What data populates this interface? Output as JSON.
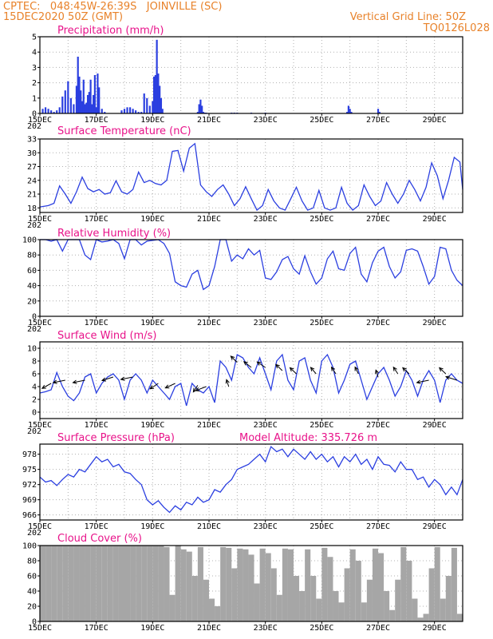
{
  "header": {
    "line1_left": "CPTEC:   048:45W-26:39S   JOINVILLE (SC)",
    "line2_left": "15DEC2020 50Z (GMT)",
    "line1_right": "Vertical Grid Line: 50Z",
    "line2_right": "TQ0126L028"
  },
  "colors": {
    "header": "#e8822a",
    "title": "#e8138a",
    "series": "#2b3fe0",
    "cloud": "#a6a6a6",
    "grid": "#b0b0b0"
  },
  "x_tick_labels": [
    "15DEC",
    "17DEC",
    "19DEC",
    "21DEC",
    "23DEC",
    "25DEC",
    "27DEC",
    "29DEC"
  ],
  "cut_label": "202",
  "chart_data": [
    {
      "type": "bar",
      "title": "Precipitation (mm/h)",
      "x_range": [
        0,
        15
      ],
      "ylim": [
        0,
        5
      ],
      "y_ticks": [
        0,
        1,
        2,
        3,
        4,
        5
      ],
      "x": [
        0.1,
        0.2,
        0.3,
        0.4,
        0.5,
        0.6,
        0.7,
        0.8,
        0.9,
        1.0,
        1.1,
        1.2,
        1.3,
        1.35,
        1.4,
        1.45,
        1.5,
        1.55,
        1.6,
        1.65,
        1.7,
        1.75,
        1.8,
        1.85,
        1.9,
        1.95,
        2.0,
        2.05,
        2.1,
        2.2,
        2.3,
        2.9,
        3.0,
        3.1,
        3.2,
        3.3,
        3.4,
        3.5,
        3.6,
        3.7,
        3.8,
        3.9,
        4.0,
        4.05,
        4.1,
        4.15,
        4.2,
        4.25,
        4.3,
        4.35,
        5.6,
        5.65,
        5.7,
        5.75,
        5.8,
        5.85,
        5.9,
        6.8,
        6.9,
        7.0,
        7.5,
        8.0,
        10.9,
        10.95,
        11.0,
        11.05,
        12.0,
        12.05
      ],
      "values": [
        0.3,
        0.4,
        0.3,
        0.2,
        0.1,
        0.2,
        0.4,
        1.1,
        1.5,
        2.1,
        1.0,
        0.6,
        1.8,
        3.7,
        2.4,
        1.5,
        0.8,
        2.2,
        0.6,
        0.7,
        1.2,
        1.4,
        2.2,
        0.6,
        1.2,
        2.5,
        0.4,
        2.6,
        1.7,
        0.3,
        0.1,
        0.2,
        0.3,
        0.4,
        0.4,
        0.3,
        0.2,
        0.1,
        0.1,
        1.3,
        1.0,
        0.5,
        0.8,
        2.4,
        2.5,
        4.8,
        2.6,
        1.8,
        1.0,
        0.3,
        0.1,
        0.6,
        0.9,
        0.5,
        0.1,
        0.05,
        0.05,
        0.05,
        0.05,
        0.05,
        0.05,
        0.05,
        0.1,
        0.5,
        0.3,
        0.1,
        0.3,
        0.1
      ]
    },
    {
      "type": "line",
      "title": "Surface Temperature (nC)",
      "x_range": [
        0,
        15
      ],
      "ylim": [
        17,
        33
      ],
      "y_ticks": [
        18,
        21,
        24,
        27,
        30,
        33
      ],
      "x": [
        0,
        0.3,
        0.5,
        0.7,
        0.9,
        1.1,
        1.3,
        1.5,
        1.7,
        1.9,
        2.1,
        2.3,
        2.5,
        2.7,
        2.9,
        3.1,
        3.3,
        3.5,
        3.7,
        3.9,
        4.1,
        4.3,
        4.5,
        4.7,
        4.9,
        5.1,
        5.3,
        5.5,
        5.7,
        5.9,
        6.1,
        6.3,
        6.5,
        6.7,
        6.9,
        7.1,
        7.3,
        7.5,
        7.7,
        7.9,
        8.1,
        8.3,
        8.5,
        8.7,
        8.9,
        9.1,
        9.3,
        9.5,
        9.7,
        9.9,
        10.1,
        10.3,
        10.5,
        10.7,
        10.9,
        11.1,
        11.3,
        11.5,
        11.7,
        11.9,
        12.1,
        12.3,
        12.5,
        12.7,
        12.9,
        13.1,
        13.3,
        13.5,
        13.7,
        13.9,
        14.1,
        14.3,
        14.5,
        14.7,
        14.9,
        15
      ],
      "values": [
        18.2,
        18.5,
        19,
        22.8,
        21,
        19,
        21.5,
        24.7,
        22.2,
        21.5,
        22,
        21,
        21.3,
        23.9,
        21.5,
        21,
        22,
        25.8,
        23.5,
        24,
        23.3,
        23,
        24,
        30.3,
        30.5,
        26,
        31,
        32,
        23,
        21.5,
        20.5,
        22,
        23,
        21,
        18.5,
        20,
        22.6,
        20,
        17.5,
        18.5,
        22,
        19.5,
        18,
        17.5,
        20,
        22.5,
        19.5,
        17.5,
        18,
        21.8,
        18,
        17.5,
        18,
        22.5,
        19,
        17.5,
        18.5,
        23,
        20.5,
        18.5,
        19.5,
        23.5,
        21,
        19,
        21,
        24,
        22,
        19.5,
        22.5,
        27.8,
        25,
        20,
        24,
        29,
        28,
        22
      ]
    },
    {
      "type": "line",
      "title": "Relative Humidity (%)",
      "x_range": [
        0,
        15
      ],
      "ylim": [
        0,
        100
      ],
      "y_ticks": [
        0,
        20,
        40,
        60,
        80,
        100
      ],
      "x": [
        0,
        0.2,
        0.4,
        0.6,
        0.8,
        1.0,
        1.2,
        1.4,
        1.6,
        1.8,
        2.0,
        2.2,
        2.4,
        2.6,
        2.8,
        3.0,
        3.2,
        3.4,
        3.6,
        3.8,
        4.0,
        4.2,
        4.4,
        4.6,
        4.8,
        5.0,
        5.2,
        5.4,
        5.6,
        5.8,
        6.0,
        6.2,
        6.4,
        6.6,
        6.8,
        7.0,
        7.2,
        7.4,
        7.6,
        7.8,
        8.0,
        8.2,
        8.4,
        8.6,
        8.8,
        9.0,
        9.2,
        9.4,
        9.6,
        9.8,
        10.0,
        10.2,
        10.4,
        10.6,
        10.8,
        11.0,
        11.2,
        11.4,
        11.6,
        11.8,
        12.0,
        12.2,
        12.4,
        12.6,
        12.8,
        13.0,
        13.2,
        13.4,
        13.6,
        13.8,
        14.0,
        14.2,
        14.4,
        14.6,
        14.8,
        15
      ],
      "values": [
        100,
        100,
        98,
        100,
        85,
        100,
        100,
        100,
        80,
        74,
        100,
        97,
        98,
        100,
        95,
        75,
        100,
        100,
        93,
        98,
        99,
        100,
        95,
        82,
        45,
        40,
        38,
        55,
        60,
        35,
        40,
        65,
        100,
        100,
        72,
        80,
        75,
        88,
        80,
        86,
        50,
        48,
        58,
        74,
        78,
        62,
        55,
        79,
        58,
        42,
        50,
        75,
        85,
        62,
        60,
        82,
        90,
        55,
        45,
        70,
        85,
        90,
        65,
        50,
        58,
        86,
        88,
        85,
        65,
        42,
        52,
        90,
        88,
        60,
        47,
        40
      ]
    },
    {
      "type": "line",
      "title": "Surface Wind (m/s)",
      "x_range": [
        0,
        15
      ],
      "ylim": [
        -1,
        11
      ],
      "y_ticks": [
        0,
        2,
        4,
        6,
        8,
        10
      ],
      "x": [
        0,
        0.2,
        0.4,
        0.6,
        0.8,
        1.0,
        1.2,
        1.4,
        1.6,
        1.8,
        2.0,
        2.2,
        2.4,
        2.6,
        2.8,
        3.0,
        3.2,
        3.4,
        3.6,
        3.8,
        4.0,
        4.2,
        4.4,
        4.6,
        4.8,
        5.0,
        5.2,
        5.4,
        5.6,
        5.8,
        6.0,
        6.2,
        6.4,
        6.6,
        6.8,
        7.0,
        7.2,
        7.4,
        7.6,
        7.8,
        8.0,
        8.2,
        8.4,
        8.6,
        8.8,
        9.0,
        9.2,
        9.4,
        9.6,
        9.8,
        10.0,
        10.2,
        10.4,
        10.6,
        10.8,
        11.0,
        11.2,
        11.4,
        11.6,
        11.8,
        12.0,
        12.2,
        12.4,
        12.6,
        12.8,
        13.0,
        13.2,
        13.4,
        13.6,
        13.8,
        14.0,
        14.2,
        14.4,
        14.6,
        14.8,
        15
      ],
      "values": [
        3,
        3.2,
        3.5,
        6.2,
        4,
        2.5,
        1.8,
        3,
        5.5,
        6,
        3,
        4.5,
        5.5,
        6,
        5,
        2,
        5,
        6,
        5,
        3,
        5,
        4,
        3,
        2,
        4,
        4.5,
        1,
        4.5,
        3.5,
        3,
        4,
        1.5,
        8,
        7,
        5,
        9,
        8.5,
        7,
        6,
        8.5,
        6,
        3.5,
        8,
        9,
        5,
        3.5,
        8,
        8.5,
        5,
        3,
        8,
        9,
        7,
        3,
        5,
        7.5,
        8,
        5,
        2,
        4,
        6,
        7,
        5,
        2.5,
        4,
        6.5,
        5,
        2.5,
        5,
        6.5,
        5,
        1.5,
        5,
        6,
        5,
        4.5
      ],
      "arrows": [
        {
          "x": 0.4,
          "speed": 4.5,
          "dir_deg": 225
        },
        {
          "x": 0.9,
          "speed": 5,
          "dir_deg": 200
        },
        {
          "x": 1.6,
          "speed": 5,
          "dir_deg": 200
        },
        {
          "x": 2.6,
          "speed": 5.5,
          "dir_deg": 210
        },
        {
          "x": 3.3,
          "speed": 5.5,
          "dir_deg": 200
        },
        {
          "x": 4.2,
          "speed": 4.5,
          "dir_deg": 230
        },
        {
          "x": 4.8,
          "speed": 4.5,
          "dir_deg": 220
        },
        {
          "x": 5.6,
          "speed": 4.2,
          "dir_deg": 250
        },
        {
          "x": 5.9,
          "speed": 4,
          "dir_deg": 215
        },
        {
          "x": 6.7,
          "speed": 4,
          "dir_deg": 100
        },
        {
          "x": 7.0,
          "speed": 7.8,
          "dir_deg": 120
        },
        {
          "x": 7.5,
          "speed": 7,
          "dir_deg": 125
        },
        {
          "x": 8.0,
          "speed": 7,
          "dir_deg": 130
        },
        {
          "x": 8.6,
          "speed": 6.5,
          "dir_deg": 120
        },
        {
          "x": 9.1,
          "speed": 6,
          "dir_deg": 120
        },
        {
          "x": 9.8,
          "speed": 6,
          "dir_deg": 115
        },
        {
          "x": 10.5,
          "speed": 6,
          "dir_deg": 110
        },
        {
          "x": 11.3,
          "speed": 6,
          "dir_deg": 105
        },
        {
          "x": 12.0,
          "speed": 5.5,
          "dir_deg": 100
        },
        {
          "x": 12.7,
          "speed": 6,
          "dir_deg": 110
        },
        {
          "x": 13.1,
          "speed": 6,
          "dir_deg": 120
        },
        {
          "x": 13.8,
          "speed": 5,
          "dir_deg": 200
        },
        {
          "x": 14.4,
          "speed": 6,
          "dir_deg": 120
        },
        {
          "x": 14.8,
          "speed": 5,
          "dir_deg": 150
        }
      ]
    },
    {
      "type": "line",
      "title": "Surface Pressure (hPa)",
      "annotation": "Model Altitude: 335.726  m",
      "x_range": [
        0,
        15
      ],
      "ylim": [
        965,
        980
      ],
      "y_ticks": [
        966,
        969,
        972,
        975,
        978
      ],
      "x": [
        0,
        0.2,
        0.4,
        0.6,
        0.8,
        1.0,
        1.2,
        1.4,
        1.6,
        1.8,
        2.0,
        2.2,
        2.4,
        2.6,
        2.8,
        3.0,
        3.2,
        3.4,
        3.6,
        3.8,
        4.0,
        4.2,
        4.4,
        4.6,
        4.8,
        5.0,
        5.2,
        5.4,
        5.6,
        5.8,
        6.0,
        6.2,
        6.4,
        6.6,
        6.8,
        7.0,
        7.2,
        7.4,
        7.6,
        7.8,
        8.0,
        8.2,
        8.4,
        8.6,
        8.8,
        9.0,
        9.2,
        9.4,
        9.6,
        9.8,
        10.0,
        10.2,
        10.4,
        10.6,
        10.8,
        11.0,
        11.2,
        11.4,
        11.6,
        11.8,
        12.0,
        12.2,
        12.4,
        12.6,
        12.8,
        13.0,
        13.2,
        13.4,
        13.6,
        13.8,
        14.0,
        14.2,
        14.4,
        14.6,
        14.8,
        15
      ],
      "values": [
        973.5,
        972.5,
        972.8,
        971.8,
        973,
        974,
        973.5,
        975,
        974.5,
        976,
        977.5,
        976.5,
        977,
        975.5,
        976,
        974.5,
        974.2,
        973,
        972,
        969,
        968,
        968.8,
        967.5,
        966.5,
        967.8,
        967,
        968.5,
        968,
        969.5,
        968.5,
        969,
        971,
        970.5,
        972,
        973,
        975,
        975.5,
        976,
        977,
        978,
        976.5,
        979.5,
        978.5,
        979,
        977.5,
        979,
        978,
        977,
        978.5,
        977,
        978,
        976.5,
        977.5,
        975.5,
        977.5,
        976.5,
        978,
        976,
        977,
        975,
        977.5,
        976,
        975.8,
        974.5,
        976.5,
        975,
        975,
        973,
        973.5,
        971.5,
        973,
        972,
        970,
        971.5,
        970,
        973
      ]
    },
    {
      "type": "bar",
      "title": "Cloud Cover (%)",
      "x_range": [
        0,
        15
      ],
      "ylim": [
        0,
        100
      ],
      "y_ticks": [
        0,
        20,
        40,
        60,
        80,
        100
      ],
      "x": [
        0.1,
        0.3,
        0.5,
        0.7,
        0.9,
        1.1,
        1.3,
        1.5,
        1.7,
        1.9,
        2.1,
        2.3,
        2.5,
        2.7,
        2.9,
        3.1,
        3.3,
        3.5,
        3.7,
        3.9,
        4.1,
        4.3,
        4.5,
        4.7,
        4.9,
        5.1,
        5.3,
        5.5,
        5.7,
        5.9,
        6.1,
        6.3,
        6.5,
        6.7,
        6.9,
        7.1,
        7.3,
        7.5,
        7.7,
        7.9,
        8.1,
        8.3,
        8.5,
        8.7,
        8.9,
        9.1,
        9.3,
        9.5,
        9.7,
        9.9,
        10.1,
        10.3,
        10.5,
        10.7,
        10.9,
        11.1,
        11.3,
        11.5,
        11.7,
        11.9,
        12.1,
        12.3,
        12.5,
        12.7,
        12.9,
        13.1,
        13.3,
        13.5,
        13.7,
        13.9,
        14.1,
        14.3,
        14.5,
        14.7,
        14.9
      ],
      "values": [
        100,
        100,
        100,
        100,
        100,
        100,
        100,
        100,
        100,
        100,
        100,
        100,
        100,
        100,
        100,
        100,
        100,
        100,
        100,
        100,
        100,
        100,
        98,
        35,
        100,
        95,
        92,
        60,
        98,
        55,
        30,
        20,
        98,
        97,
        70,
        96,
        95,
        88,
        50,
        96,
        90,
        70,
        35,
        96,
        95,
        60,
        40,
        95,
        60,
        30,
        97,
        85,
        40,
        25,
        70,
        95,
        80,
        25,
        55,
        96,
        90,
        40,
        15,
        55,
        98,
        80,
        30,
        5,
        10,
        70,
        98,
        30,
        60,
        97,
        10
      ]
    }
  ]
}
